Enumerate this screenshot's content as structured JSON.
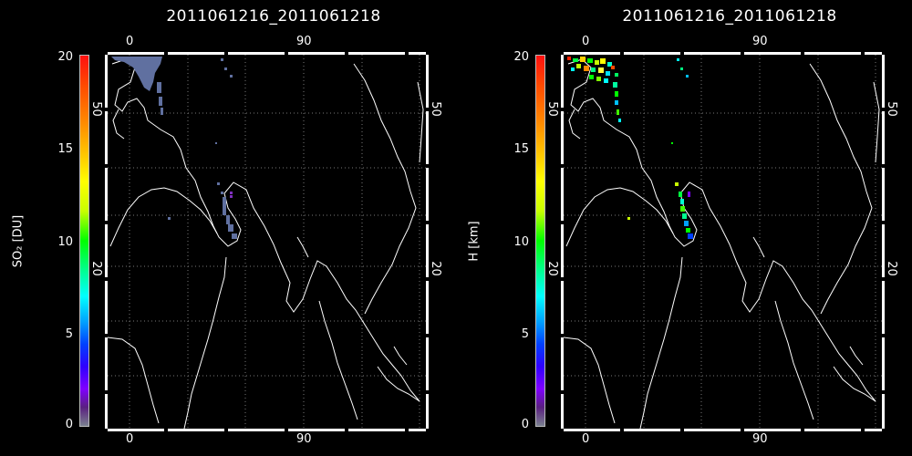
{
  "panels": [
    {
      "title": "2011061216_2011061218",
      "colorbar_label": "SO₂ [DU]",
      "colorbar_ticks": [
        "20",
        "15",
        "10",
        "5",
        "0"
      ],
      "colorbar_inner_ticks": [
        "50",
        "20"
      ],
      "x_top_ticks": [
        "0",
        "90"
      ],
      "x_bottom_ticks": [
        "0",
        "90"
      ],
      "right_ticks": [
        "50",
        "20"
      ],
      "palette": "so2"
    },
    {
      "title": "2011061216_2011061218",
      "colorbar_label": "H [km]",
      "colorbar_ticks": [
        "20",
        "15",
        "10",
        "5",
        "0"
      ],
      "colorbar_inner_ticks": [
        "50",
        "20"
      ],
      "x_top_ticks": [
        "0",
        "90"
      ],
      "x_bottom_ticks": [
        "0",
        "90"
      ],
      "right_ticks": [
        "50",
        "20"
      ],
      "palette": "height"
    }
  ]
}
